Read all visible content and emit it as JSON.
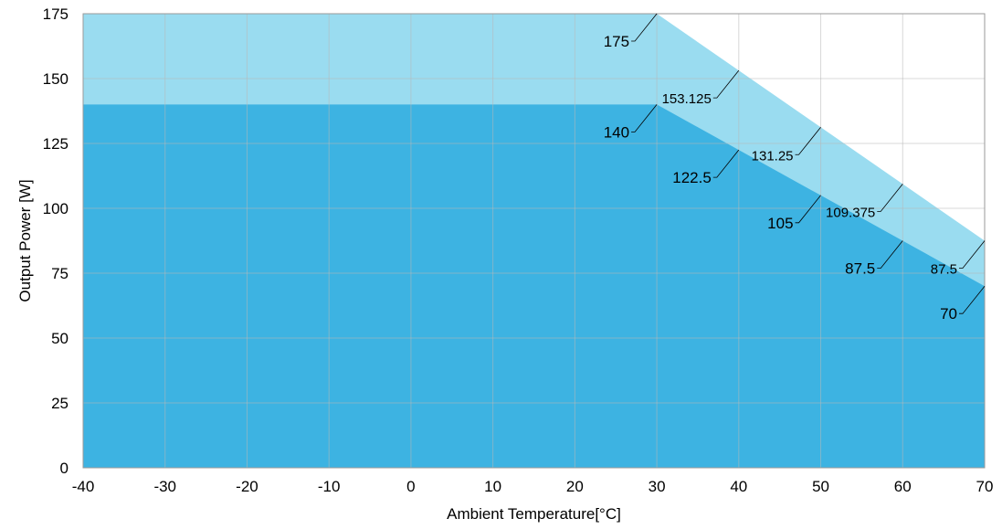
{
  "chart_data": {
    "type": "area",
    "xlabel": "Ambient Temperature[°C]",
    "ylabel": "Output Power [W]",
    "xlim": [
      -40,
      70
    ],
    "ylim": [
      0,
      175
    ],
    "x_ticks": [
      -40,
      -30,
      -20,
      -10,
      0,
      10,
      20,
      30,
      40,
      50,
      60,
      70
    ],
    "y_ticks": [
      0,
      25,
      50,
      75,
      100,
      125,
      150,
      175
    ],
    "grid": true,
    "colors": {
      "upper": "#9adcf0",
      "lower": "#3db3e2",
      "grid": "#b8b8b8"
    },
    "series": [
      {
        "x": [
          -40,
          30,
          40,
          50,
          60,
          70
        ],
        "y": [
          175,
          175,
          153.125,
          131.25,
          109.375,
          87.5
        ],
        "labels": [
          {
            "x": 30,
            "y": 175,
            "text": "175"
          },
          {
            "x": 40,
            "y": 153.125,
            "text": "153.125"
          },
          {
            "x": 50,
            "y": 131.25,
            "text": "131.25"
          },
          {
            "x": 60,
            "y": 109.375,
            "text": "109.375"
          },
          {
            "x": 70,
            "y": 87.5,
            "text": "87.5"
          }
        ]
      },
      {
        "x": [
          -40,
          30,
          40,
          50,
          60,
          70
        ],
        "y": [
          140,
          140,
          122.5,
          105,
          87.5,
          70
        ],
        "labels": [
          {
            "x": 30,
            "y": 140,
            "text": "140"
          },
          {
            "x": 40,
            "y": 122.5,
            "text": "122.5"
          },
          {
            "x": 50,
            "y": 105,
            "text": "105"
          },
          {
            "x": 60,
            "y": 87.5,
            "text": "87.5"
          },
          {
            "x": 70,
            "y": 70,
            "text": "70"
          }
        ]
      }
    ]
  }
}
